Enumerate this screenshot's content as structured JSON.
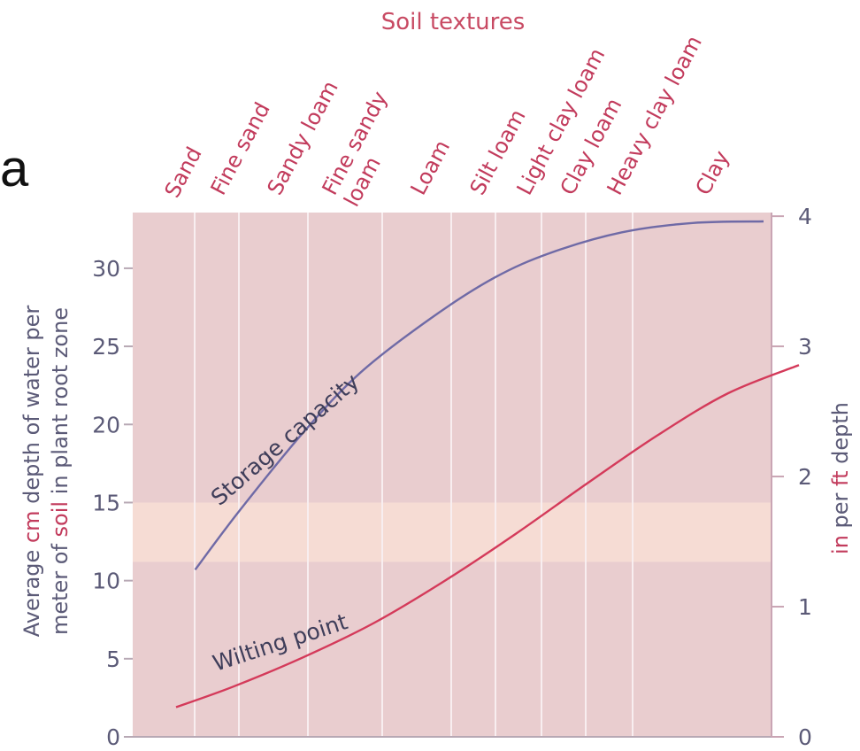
{
  "panel_label": "a",
  "chart_data": {
    "type": "line",
    "title": "Soil textures",
    "categories": [
      "Sand",
      "Fine sand",
      "Sandy loam",
      "Fine sandy loam",
      "Loam",
      "Silt loam",
      "Light clay loam",
      "Clay loam",
      "Heavy clay loam",
      "Clay"
    ],
    "category_label_lines": [
      [
        "Sand"
      ],
      [
        "Fine sand"
      ],
      [
        "Sandy loam"
      ],
      [
        "Fine sandy",
        "loam"
      ],
      [
        "Loam"
      ],
      [
        "Silt loam"
      ],
      [
        "Light clay loam"
      ],
      [
        "Clay loam"
      ],
      [
        "Heavy clay loam"
      ],
      [
        "Clay"
      ]
    ],
    "ylabel_left": {
      "line1": [
        "Average ",
        "cm",
        " depth of water per"
      ],
      "line2": [
        "meter of ",
        "soil",
        " in plant root zone"
      ]
    },
    "ylabel_right": {
      "parts": [
        "in",
        " per ",
        "ft",
        " depth"
      ]
    },
    "ylim_left": [
      0,
      33
    ],
    "ylim_right": [
      0,
      3.96
    ],
    "yticks_left": [
      0,
      5,
      10,
      15,
      20,
      25,
      30
    ],
    "yticks_right": [
      0,
      1,
      2,
      3,
      4
    ],
    "series": [
      {
        "name": "Storage capacity",
        "color": "#6f6aa6",
        "points": [
          {
            "x": 0.97,
            "y": 10.7
          },
          {
            "x": 1.6,
            "y": 14.5
          },
          {
            "x": 2.5,
            "y": 19.5
          },
          {
            "x": 3.3,
            "y": 23.3
          },
          {
            "x": 4.3,
            "y": 26.8
          },
          {
            "x": 5.2,
            "y": 29.4
          },
          {
            "x": 6.0,
            "y": 31.0
          },
          {
            "x": 7.0,
            "y": 32.3
          },
          {
            "x": 8.0,
            "y": 32.9
          },
          {
            "x": 9.0,
            "y": 33.0
          }
        ]
      },
      {
        "name": "Wilting point",
        "color": "#d43a5a",
        "points": [
          {
            "x": 0.7,
            "y": 1.9
          },
          {
            "x": 1.5,
            "y": 3.2
          },
          {
            "x": 2.5,
            "y": 5.1
          },
          {
            "x": 3.5,
            "y": 7.3
          },
          {
            "x": 4.5,
            "y": 10.0
          },
          {
            "x": 5.5,
            "y": 13.0
          },
          {
            "x": 6.5,
            "y": 16.2
          },
          {
            "x": 7.5,
            "y": 19.3
          },
          {
            "x": 8.5,
            "y": 22.0
          },
          {
            "x": 9.5,
            "y": 23.8
          }
        ]
      }
    ],
    "band_highlight": [
      11.2,
      15.0
    ],
    "grid": true
  }
}
